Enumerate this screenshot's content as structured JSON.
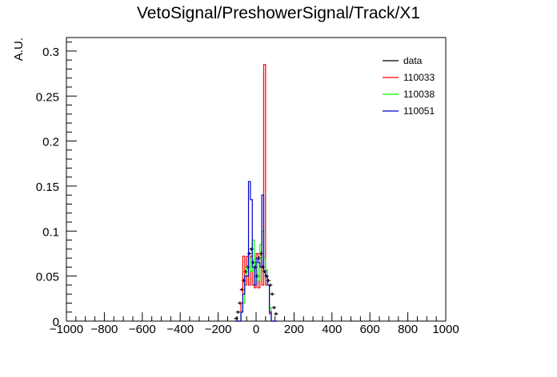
{
  "chart_data": {
    "type": "histogram-step",
    "title": "VetoSignal/PreshowerSignal/Track/X1",
    "xlabel": "",
    "ylabel": "A.U.",
    "xlim": [
      -1000,
      1000
    ],
    "ylim": [
      0,
      0.315
    ],
    "grid": false,
    "legend_position": "top-right",
    "x_ticks": [
      -1000,
      -800,
      -600,
      -400,
      -200,
      0,
      200,
      400,
      600,
      800,
      1000
    ],
    "x_tick_labels": [
      "−1000",
      "−800",
      "−600",
      "−400",
      "−200",
      "0",
      "200",
      "400",
      "600",
      "800",
      "1000"
    ],
    "y_ticks": [
      0,
      0.05,
      0.1,
      0.15,
      0.2,
      0.25,
      0.3
    ],
    "y_tick_labels": [
      "0",
      "0.05",
      "0.1",
      "0.15",
      "0.2",
      "0.25",
      "0.3"
    ],
    "bin_edges": [
      -110,
      -100,
      -90,
      -80,
      -70,
      -60,
      -50,
      -40,
      -30,
      -20,
      -10,
      0,
      10,
      20,
      30,
      40,
      50,
      60,
      70,
      80,
      90,
      100,
      110
    ],
    "series": [
      {
        "name": "data",
        "color": "#000000",
        "style": "points",
        "values": [
          0.003,
          0.01,
          0.02,
          0.035,
          0.045,
          0.055,
          0.06,
          0.075,
          0.08,
          0.065,
          0.06,
          0.05,
          0.07,
          0.075,
          0.06,
          0.055,
          0.05,
          0.045,
          0.04,
          0.03,
          0.015,
          0.008
        ]
      },
      {
        "name": "110033",
        "color": "#ff0000",
        "style": "step",
        "values": [
          0,
          0,
          0,
          0.02,
          0.072,
          0.04,
          0.072,
          0.04,
          0.072,
          0.04,
          0.037,
          0.075,
          0.037,
          0.075,
          0.04,
          0.285,
          0.04,
          0.04,
          0.008,
          0,
          0,
          0
        ]
      },
      {
        "name": "110038",
        "color": "#00ff00",
        "style": "step",
        "values": [
          0,
          0,
          0,
          0.01,
          0.02,
          0.05,
          0.06,
          0.07,
          0.055,
          0.09,
          0.04,
          0.065,
          0.045,
          0.085,
          0.1,
          0.07,
          0.057,
          0.04,
          0.015,
          0,
          0,
          0
        ]
      },
      {
        "name": "110051",
        "color": "#0000cc",
        "style": "step",
        "values": [
          0,
          0,
          0,
          0.01,
          0.03,
          0.05,
          0.05,
          0.155,
          0.135,
          0.06,
          0.04,
          0.07,
          0.065,
          0.06,
          0.14,
          0.055,
          0.05,
          0.04,
          0.01,
          0,
          0,
          0
        ]
      }
    ]
  }
}
